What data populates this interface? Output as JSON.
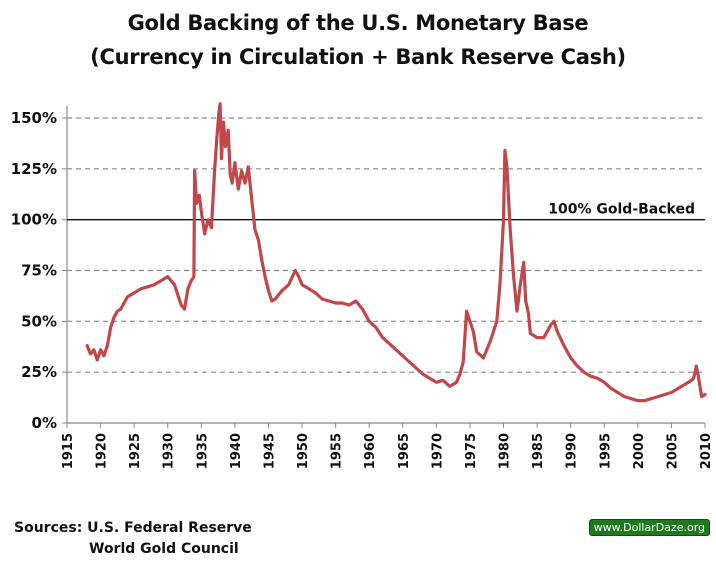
{
  "chart_data": {
    "type": "line",
    "title": "Gold Backing of the U.S. Monetary Base",
    "subtitle": "(Currency in Circulation + Bank Reserve Cash)",
    "xlabel": "",
    "ylabel": "",
    "xlim": [
      1915,
      2010
    ],
    "ylim": [
      0,
      150
    ],
    "y_ticks": [
      "0%",
      "25%",
      "50%",
      "75%",
      "100%",
      "125%",
      "150%"
    ],
    "y_tick_values": [
      0,
      25,
      50,
      75,
      100,
      125,
      150
    ],
    "x_ticks": [
      "1915",
      "1920",
      "1925",
      "1930",
      "1935",
      "1940",
      "1945",
      "1950",
      "1955",
      "1960",
      "1965",
      "1970",
      "1975",
      "1980",
      "1985",
      "1990",
      "1995",
      "2000",
      "2005",
      "2010"
    ],
    "x_tick_values": [
      1915,
      1920,
      1925,
      1930,
      1935,
      1940,
      1945,
      1950,
      1955,
      1960,
      1965,
      1970,
      1975,
      1980,
      1985,
      1990,
      1995,
      2000,
      2005,
      2010
    ],
    "grid": "horizontal dashed",
    "reference_line": {
      "value": 100,
      "label": "100% Gold-Backed"
    },
    "series": [
      {
        "name": "Gold backing",
        "color": "#c0474a",
        "x": [
          1918,
          1918.5,
          1919,
          1919.5,
          1920,
          1920.5,
          1921,
          1921.5,
          1922,
          1922.5,
          1923,
          1924,
          1925,
          1926,
          1927,
          1928,
          1929,
          1930,
          1931,
          1932,
          1932.5,
          1933,
          1933.5,
          1933.9,
          1934,
          1934.3,
          1934.7,
          1935,
          1935.5,
          1936,
          1936.5,
          1937,
          1937.3,
          1937.6,
          1937.8,
          1938,
          1938.3,
          1938.6,
          1939,
          1939.3,
          1939.6,
          1940,
          1940.5,
          1941,
          1941.5,
          1942,
          1942.5,
          1943,
          1943.5,
          1944,
          1944.5,
          1945,
          1945.5,
          1946,
          1947,
          1948,
          1949,
          1949.5,
          1950,
          1951,
          1952,
          1953,
          1954,
          1955,
          1956,
          1957,
          1958,
          1959,
          1960,
          1961,
          1962,
          1963,
          1964,
          1965,
          1966,
          1967,
          1968,
          1969,
          1970,
          1971,
          1972,
          1973,
          1973.5,
          1974,
          1974.5,
          1975,
          1975.5,
          1976,
          1977,
          1978,
          1979,
          1979.5,
          1980,
          1980.2,
          1980.5,
          1981,
          1981.5,
          1982,
          1982.5,
          1983,
          1983.3,
          1983.7,
          1984,
          1985,
          1986,
          1987,
          1987.5,
          1988,
          1989,
          1990,
          1991,
          1992,
          1993,
          1994,
          1995,
          1996,
          1997,
          1998,
          1999,
          2000,
          2001,
          2002,
          2003,
          2004,
          2005,
          2006,
          2007,
          2008,
          2008.3,
          2008.7,
          2009,
          2009.5,
          2010
        ],
        "y": [
          38,
          34,
          36,
          31,
          36,
          33,
          38,
          47,
          52,
          55,
          56,
          62,
          64,
          66,
          67,
          68,
          70,
          72,
          68,
          58,
          56,
          66,
          70,
          72,
          124,
          108,
          112,
          104,
          93,
          100,
          96,
          125,
          140,
          152,
          157,
          130,
          148,
          136,
          144,
          122,
          118,
          128,
          115,
          124,
          118,
          126,
          110,
          95,
          90,
          80,
          72,
          65,
          60,
          61,
          65,
          68,
          75,
          72,
          68,
          66,
          64,
          61,
          60,
          59,
          59,
          58,
          60,
          56,
          50,
          47,
          42,
          39,
          36,
          33,
          30,
          27,
          24,
          22,
          20,
          21,
          18,
          20,
          24,
          30,
          55,
          50,
          45,
          35,
          32,
          40,
          50,
          70,
          100,
          134,
          126,
          95,
          72,
          55,
          68,
          79,
          60,
          54,
          44,
          42,
          42,
          48,
          50,
          45,
          38,
          32,
          28,
          25,
          23,
          22,
          20,
          17,
          15,
          13,
          12,
          11,
          11,
          12,
          13,
          14,
          15,
          17,
          19,
          21,
          22,
          28,
          23,
          13,
          14
        ],
        "series_label_visible": false
      }
    ]
  },
  "footer": {
    "sources_line1": "Sources: U.S. Federal Reserve",
    "sources_line2": "World Gold Council",
    "badge": "www.DollarDaze.org",
    "badge_color": "#1f7a1f"
  }
}
